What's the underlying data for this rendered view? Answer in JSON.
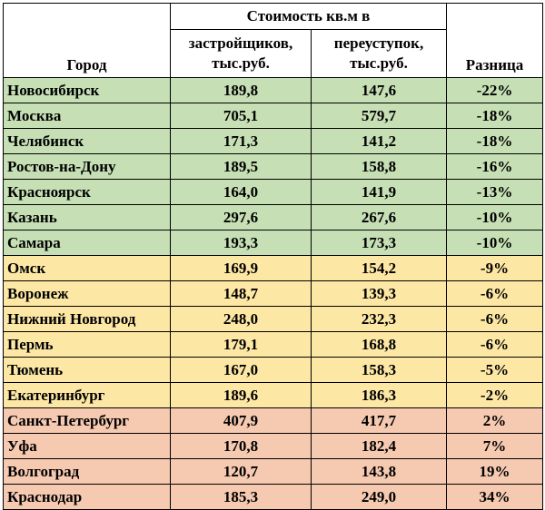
{
  "header": {
    "city": "Город",
    "group": "Стоимость кв.м в",
    "developers_line1": "застройщиков,",
    "developers_line2": "тыс.руб.",
    "resale_line1": "переуступок,",
    "resale_line2": "тыс.руб.",
    "diff": "Разница"
  },
  "colors": {
    "green": "#c6dfb4",
    "yellow": "#fde7a4",
    "red": "#f6c9b1"
  },
  "rows": [
    {
      "city": "Новосибирск",
      "dev": "189,8",
      "resale": "147,6",
      "diff": "-22%",
      "tone": "green"
    },
    {
      "city": "Москва",
      "dev": "705,1",
      "resale": "579,7",
      "diff": "-18%",
      "tone": "green"
    },
    {
      "city": "Челябинск",
      "dev": "171,3",
      "resale": "141,2",
      "diff": "-18%",
      "tone": "green"
    },
    {
      "city": "Ростов-на-Дону",
      "dev": "189,5",
      "resale": "158,8",
      "diff": "-16%",
      "tone": "green"
    },
    {
      "city": "Красноярск",
      "dev": "164,0",
      "resale": "141,9",
      "diff": "-13%",
      "tone": "green"
    },
    {
      "city": "Казань",
      "dev": "297,6",
      "resale": "267,6",
      "diff": "-10%",
      "tone": "green"
    },
    {
      "city": "Самара",
      "dev": "193,3",
      "resale": "173,3",
      "diff": "-10%",
      "tone": "green"
    },
    {
      "city": "Омск",
      "dev": "169,9",
      "resale": "154,2",
      "diff": "-9%",
      "tone": "yellow"
    },
    {
      "city": "Воронеж",
      "dev": "148,7",
      "resale": "139,3",
      "diff": "-6%",
      "tone": "yellow"
    },
    {
      "city": "Нижний Новгород",
      "dev": "248,0",
      "resale": "232,3",
      "diff": "-6%",
      "tone": "yellow"
    },
    {
      "city": "Пермь",
      "dev": "179,1",
      "resale": "168,8",
      "diff": "-6%",
      "tone": "yellow"
    },
    {
      "city": "Тюмень",
      "dev": "167,0",
      "resale": "158,3",
      "diff": "-5%",
      "tone": "yellow"
    },
    {
      "city": "Екатеринбург",
      "dev": "189,6",
      "resale": "186,3",
      "diff": "-2%",
      "tone": "yellow"
    },
    {
      "city": "Санкт-Петербург",
      "dev": "407,9",
      "resale": "417,7",
      "diff": "2%",
      "tone": "red"
    },
    {
      "city": "Уфа",
      "dev": "170,8",
      "resale": "182,4",
      "diff": "7%",
      "tone": "red"
    },
    {
      "city": "Волгоград",
      "dev": "120,7",
      "resale": "143,8",
      "diff": "19%",
      "tone": "red"
    },
    {
      "city": "Краснодар",
      "dev": "185,3",
      "resale": "249,0",
      "diff": "34%",
      "tone": "red"
    }
  ]
}
